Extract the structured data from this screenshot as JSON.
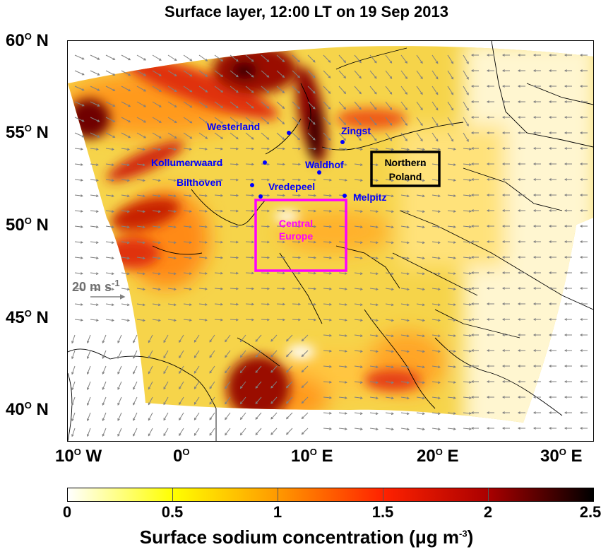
{
  "title": "Surface layer, 12:00 LT on 19 Sep  2013",
  "y_axis": {
    "ticks": [
      {
        "deg": "60",
        "suffix": " N"
      },
      {
        "deg": "55",
        "suffix": " N"
      },
      {
        "deg": "50",
        "suffix": " N"
      },
      {
        "deg": "45",
        "suffix": " N"
      },
      {
        "deg": "40",
        "suffix": " N"
      }
    ]
  },
  "x_axis": {
    "ticks": [
      {
        "deg": "10",
        "suffix": " W"
      },
      {
        "deg": "0",
        "suffix": ""
      },
      {
        "deg": "10",
        "suffix": " E"
      },
      {
        "deg": "20",
        "suffix": " E"
      },
      {
        "deg": "30",
        "suffix": " E"
      }
    ]
  },
  "degree_symbol": "O",
  "stations": [
    {
      "name": "Westerland"
    },
    {
      "name": "Zingst"
    },
    {
      "name": "Kollumerwaard"
    },
    {
      "name": "Waldhof"
    },
    {
      "name": "Bilthoven"
    },
    {
      "name": "Vredepeel"
    },
    {
      "name": "Melpitz"
    }
  ],
  "regions": {
    "northern_poland": {
      "line1": "Northern",
      "line2": "Poland",
      "color": "#000000"
    },
    "central_europe": {
      "line1": "Central",
      "line2": "Europe",
      "color": "#ff00ff"
    }
  },
  "wind_scale": {
    "label": "20 m s",
    "exp": "-1"
  },
  "colorbar": {
    "ticks": [
      "0",
      "0.5",
      "1",
      "1.5",
      "2",
      "2.5"
    ],
    "label_main": "Surface sodium concentration (",
    "label_mu": "μ",
    "label_units": "g m",
    "label_exp": "-3",
    "label_end": ")",
    "colors": [
      "#ffffff",
      "#ffff00",
      "#ff9900",
      "#ff2200",
      "#aa0000",
      "#000000"
    ]
  },
  "colors": {
    "station_text": "#0000ff",
    "central_box": "#ff00ff",
    "wind_arrow": "#808080"
  }
}
